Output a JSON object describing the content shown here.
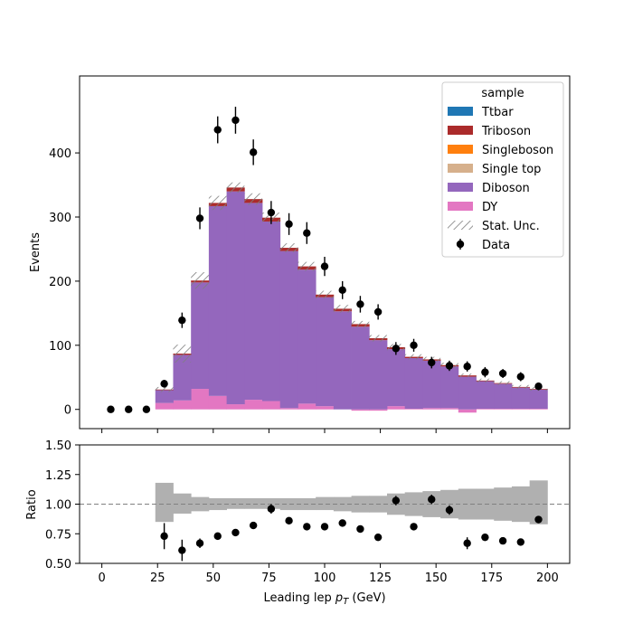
{
  "chart_data": [
    {
      "type": "bar",
      "subtype": "stacked-histogram",
      "xlabel": "Leading lep p_T (GeV)",
      "ylabel": "Events",
      "xlim": [
        -10,
        210
      ],
      "ylim": [
        -30,
        520
      ],
      "xticks": [
        0,
        25,
        50,
        75,
        100,
        125,
        150,
        175,
        200
      ],
      "yticks": [
        0,
        100,
        200,
        300,
        400
      ],
      "bin_edges": [
        24,
        32,
        40,
        48,
        56,
        64,
        72,
        80,
        88,
        96,
        104,
        112,
        120,
        128,
        136,
        144,
        152,
        160,
        168,
        176,
        184,
        192,
        200
      ],
      "series": [
        {
          "name": "Ttbar",
          "color": "#1f77b4",
          "values": [
            0,
            0,
            0,
            0,
            0,
            0,
            0,
            0,
            0,
            0,
            0,
            0,
            0,
            0,
            0,
            0,
            0,
            0,
            0,
            0,
            0,
            0
          ]
        },
        {
          "name": "Triboson",
          "color": "#ab2b2b",
          "values": [
            1,
            2,
            3,
            5,
            6,
            6,
            6,
            5,
            5,
            4,
            4,
            4,
            3,
            3,
            2,
            2,
            2,
            2,
            1,
            1,
            1,
            1
          ]
        },
        {
          "name": "Singleboson",
          "color": "#ff7f0e",
          "values": [
            0,
            0,
            0,
            0,
            0,
            0,
            0,
            0,
            0,
            0,
            0,
            0,
            0,
            0,
            0,
            0,
            0,
            0,
            0,
            0,
            0,
            0
          ]
        },
        {
          "name": "Single top",
          "color": "#d6b08c",
          "values": [
            0,
            0,
            0,
            0,
            0,
            0,
            0,
            0,
            0,
            0,
            0,
            0,
            0,
            0,
            0,
            0,
            0,
            0,
            0,
            0,
            0,
            0
          ]
        },
        {
          "name": "Diboson",
          "color": "#9467bd",
          "values": [
            20,
            71,
            166,
            296,
            332,
            307,
            280,
            245,
            209,
            170,
            153,
            129,
            108,
            89,
            79,
            74,
            65,
            51,
            43,
            39,
            33,
            30
          ]
        },
        {
          "name": "DY",
          "color": "#e377c2",
          "values": [
            10,
            14,
            32,
            21,
            8,
            15,
            13,
            2,
            9,
            5,
            0,
            -2,
            -2,
            5,
            1,
            2,
            2,
            -5,
            1,
            1,
            1,
            1
          ]
        }
      ],
      "stat_unc": {
        "label": "Stat. Unc.",
        "values": [
          4,
          14,
          13,
          11,
          8,
          9,
          8,
          7,
          7,
          6,
          6,
          5,
          5,
          5,
          4,
          4,
          4,
          3,
          3,
          3,
          3,
          3
        ]
      },
      "data": {
        "label": "Data",
        "x": [
          4,
          12,
          20,
          28,
          36,
          44,
          52,
          60,
          68,
          76,
          84,
          92,
          100,
          108,
          116,
          124,
          132,
          140,
          148,
          156,
          164,
          172,
          180,
          188,
          196
        ],
        "y": [
          0,
          0,
          0,
          40,
          139,
          298,
          436,
          451,
          401,
          307,
          289,
          275,
          223,
          186,
          164,
          152,
          95,
          100,
          73,
          68,
          67,
          58,
          56,
          51,
          36
        ],
        "err": [
          0,
          0,
          0,
          6,
          12,
          17,
          21,
          21,
          20,
          18,
          17,
          17,
          15,
          14,
          13,
          12,
          10,
          10,
          9,
          8,
          8,
          8,
          7,
          7,
          6
        ]
      },
      "legend": {
        "title": "sample",
        "position": "top-right",
        "entries": [
          "Ttbar",
          "Triboson",
          "Singleboson",
          "Single top",
          "Diboson",
          "DY",
          "Stat. Unc.",
          "Data"
        ]
      }
    },
    {
      "type": "scatter",
      "subtype": "ratio-panel",
      "xlabel": "Leading lep p_T (GeV)",
      "ylabel": "Ratio",
      "xlim": [
        -10,
        210
      ],
      "ylim": [
        0.5,
        1.5
      ],
      "xticks": [
        0,
        25,
        50,
        75,
        100,
        125,
        150,
        175,
        200
      ],
      "yticks": [
        "0.50",
        "0.75",
        "1.00",
        "1.25",
        "1.50"
      ],
      "reference_line": 1.0,
      "unc_band": {
        "bin_edges": [
          24,
          32,
          40,
          48,
          56,
          64,
          72,
          80,
          88,
          96,
          104,
          112,
          120,
          128,
          136,
          144,
          152,
          160,
          168,
          176,
          184,
          192,
          200
        ],
        "lower": [
          0.85,
          0.92,
          0.94,
          0.95,
          0.96,
          0.96,
          0.96,
          0.95,
          0.95,
          0.95,
          0.94,
          0.93,
          0.93,
          0.91,
          0.9,
          0.89,
          0.88,
          0.87,
          0.87,
          0.86,
          0.85,
          0.83
        ],
        "upper": [
          1.18,
          1.09,
          1.06,
          1.05,
          1.05,
          1.05,
          1.05,
          1.05,
          1.05,
          1.06,
          1.06,
          1.07,
          1.07,
          1.09,
          1.1,
          1.11,
          1.12,
          1.13,
          1.13,
          1.14,
          1.15,
          1.2
        ]
      },
      "points": {
        "x": [
          28,
          36,
          44,
          52,
          60,
          68,
          76,
          84,
          92,
          100,
          108,
          116,
          124,
          132,
          140,
          148,
          156,
          164,
          172,
          180,
          188,
          196
        ],
        "y": [
          0.73,
          0.61,
          0.67,
          0.73,
          0.76,
          0.82,
          0.96,
          0.86,
          0.81,
          0.81,
          0.84,
          0.79,
          0.72,
          1.03,
          0.81,
          1.04,
          0.95,
          0.67,
          0.72,
          0.69,
          0.68,
          0.87
        ],
        "err": [
          0.11,
          0.09,
          0.04,
          0.03,
          0.03,
          0.03,
          0.04,
          0.03,
          0.03,
          0.03,
          0.03,
          0.03,
          0.03,
          0.04,
          0.03,
          0.04,
          0.04,
          0.05,
          0.03,
          0.03,
          0.03,
          0.03
        ]
      }
    }
  ]
}
